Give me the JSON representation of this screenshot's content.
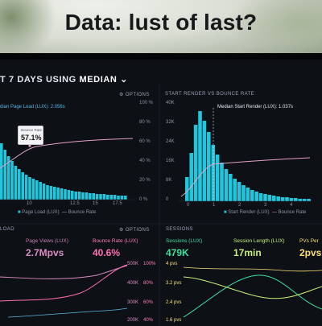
{
  "headline": "Data: lust of last?",
  "dashboard": {
    "title_prefix": "T 7 DAYS USING",
    "title_highlight": "MEDIAN",
    "options_label": "OPTIONS",
    "options_label_2": "OPTIONS",
    "left_chart": {
      "legend_top": "dian Page Load (LUX): 2.056s",
      "tooltip_label": "Bounce Rate",
      "tooltip_value": "57.1%",
      "y_ticks_right": [
        "100 %",
        "80 %",
        "60 %",
        "40 %",
        "20 %",
        "0 %"
      ],
      "x_ticks": [
        "10",
        "12.5",
        "15",
        "17.5"
      ],
      "legend_bottom": [
        "Page Load (LUX)",
        "Bounce Rate"
      ]
    },
    "right_chart": {
      "title": "START RENDER VS BOUNCE RATE",
      "legend_top": "Median Start Render (LUX): 1.037s",
      "y_ticks_left": [
        "40K",
        "32K",
        "24K",
        "16K",
        "8K",
        "0"
      ],
      "x_ticks": [
        "0",
        "1",
        "2",
        "3",
        "4"
      ],
      "legend_bottom": [
        "Start Render (LUX)",
        "Bounce Rate"
      ]
    },
    "bottom_left": {
      "section": "LOAD",
      "page_views_label": "Page Views (LUX)",
      "page_views_value": "2.7Mpvs",
      "bounce_label": "Bounce Rate (LUX)",
      "bounce_value": "40.6%",
      "y_ticks_mid": [
        "500K",
        "400K",
        "300K",
        "200K"
      ],
      "y_ticks_pct": [
        "100%",
        "80%",
        "60%",
        "40%"
      ]
    },
    "bottom_right": {
      "section": "SESSIONS",
      "sessions_label": "Sessions (LUX)",
      "sessions_value": "479K",
      "length_label": "Session Length (LUX)",
      "length_value": "17min",
      "pvs_label": "PVs Per",
      "pvs_value": "2pvs",
      "y_ticks": [
        "4 pvs",
        "3.2 pvs",
        "2.4 pvs",
        "1.6 pvs"
      ]
    },
    "colors": {
      "bars": "#22c6dc",
      "pink": "#e3a3c8",
      "green": "#3fe0a0",
      "magenta": "#ff6fb0"
    }
  }
}
